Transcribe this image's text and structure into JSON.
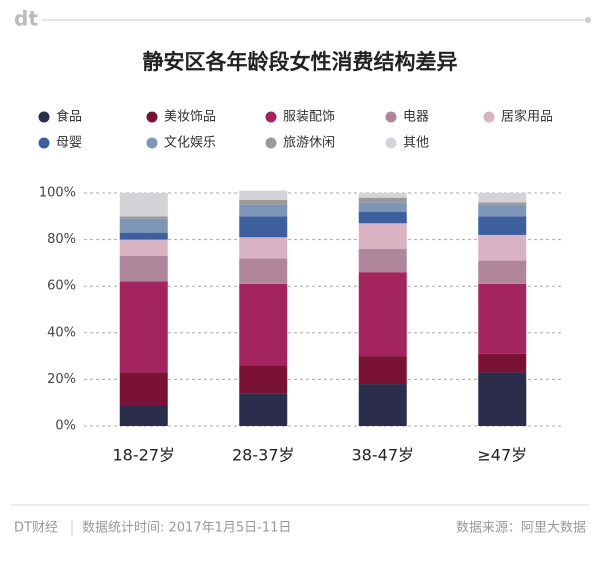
{
  "logo": "dt",
  "footer": {
    "brand": "DT财经",
    "period": "数据统计时间: 2017年1月5日-11日",
    "source": "数据来源：阿里大数据"
  },
  "chart_data": {
    "type": "stacked_bar",
    "title": "静安区各年龄段女性消费结构差异",
    "categories": [
      "18-27岁",
      "28-37岁",
      "38-47岁",
      "≥47岁"
    ],
    "series": [
      {
        "name": "食品",
        "color": "#2b2d4a",
        "values": [
          9,
          14,
          18,
          23
        ]
      },
      {
        "name": "美妆饰品",
        "color": "#7a1236",
        "values": [
          14,
          12,
          12,
          8
        ]
      },
      {
        "name": "服装配饰",
        "color": "#a3245e",
        "values": [
          39,
          35,
          36,
          30
        ]
      },
      {
        "name": "电器",
        "color": "#b0869a",
        "values": [
          11,
          11,
          10,
          10
        ]
      },
      {
        "name": "居家用品",
        "color": "#d9b2c4",
        "values": [
          7,
          9,
          11,
          11
        ]
      },
      {
        "name": "母婴",
        "color": "#3d5f9e",
        "values": [
          3,
          9,
          5,
          8
        ]
      },
      {
        "name": "文化娱乐",
        "color": "#7d96b8",
        "values": [
          6,
          5,
          4,
          5
        ]
      },
      {
        "name": "旅游休闲",
        "color": "#9a9a9a",
        "values": [
          1,
          2,
          2,
          1
        ]
      },
      {
        "name": "其他",
        "color": "#d4d4d8",
        "values": [
          10,
          4,
          2,
          4
        ]
      }
    ],
    "ylim": [
      0,
      100
    ],
    "yticks": [
      {
        "value": 0,
        "label": "0%"
      },
      {
        "value": 20,
        "label": "20%"
      },
      {
        "value": 40,
        "label": "40%"
      },
      {
        "value": 60,
        "label": "60%"
      },
      {
        "value": 80,
        "label": "80%"
      },
      {
        "value": 100,
        "label": "100%"
      }
    ],
    "grid": true
  }
}
